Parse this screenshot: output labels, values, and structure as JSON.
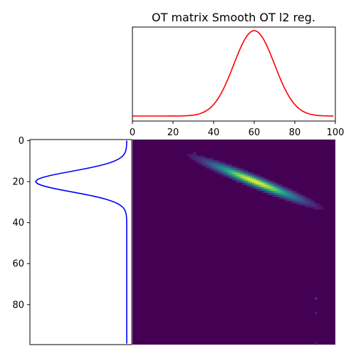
{
  "chart_data": [
    {
      "panel": "top",
      "type": "line",
      "title": "OT matrix Smooth OT l2 reg.",
      "xlim": [
        0,
        100
      ],
      "x_ticks": [
        "0",
        "20",
        "40",
        "60",
        "80",
        "100"
      ],
      "y_ticks_visible": false,
      "series": [
        {
          "color": "#ff0000",
          "distribution": "gaussian",
          "mean": 60,
          "std": 10,
          "n_points": 100
        }
      ]
    },
    {
      "panel": "left",
      "type": "line",
      "orientation": "vertical",
      "ylim": [
        99.5,
        -0.5
      ],
      "y_ticks": [
        "0",
        "20",
        "40",
        "60",
        "80"
      ],
      "x_ticks_visible": false,
      "series": [
        {
          "color": "#0000ff",
          "distribution": "gaussian",
          "mean": 20,
          "std": 5,
          "n_points": 100
        }
      ]
    },
    {
      "panel": "main",
      "type": "heatmap",
      "colormap": "viridis",
      "rows": 100,
      "cols": 100,
      "support": {
        "center_row": 20,
        "center_col": 60,
        "row_slope": 0.39,
        "band_std_cols": 14,
        "band_std_rows": 1.6
      },
      "outlier_cells": [
        {
          "row": 6,
          "col": 30,
          "level": 0.12
        },
        {
          "row": 77,
          "col": 90,
          "level": 0.18
        },
        {
          "row": 84,
          "col": 90,
          "level": 0.1
        },
        {
          "row": 99,
          "col": 90,
          "level": 0.1
        }
      ]
    }
  ]
}
